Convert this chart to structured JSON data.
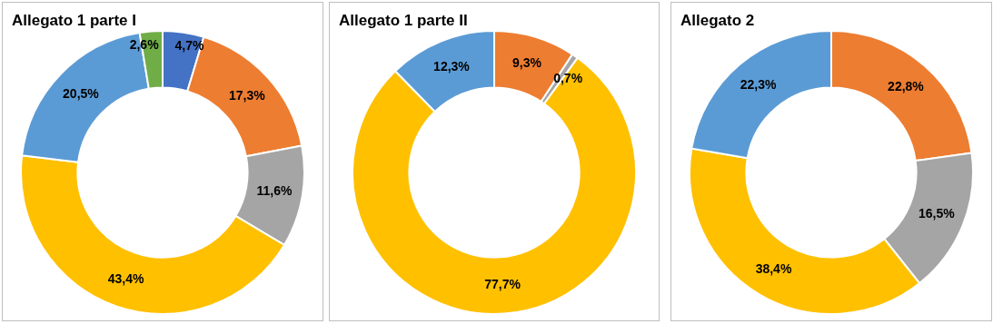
{
  "chart_data": [
    {
      "type": "donut",
      "title": "Allegato 1 parte I",
      "categories": [
        null,
        null,
        null,
        null,
        null,
        null
      ],
      "values": [
        4.7,
        17.3,
        11.6,
        43.4,
        20.5,
        2.6
      ],
      "colors": [
        "#4472c4",
        "#ed7d31",
        "#a5a5a5",
        "#ffc000",
        "#5b9bd5",
        "#70ad47"
      ],
      "value_labels": [
        "4,7%",
        "17,3%",
        "11,6%",
        "43,4%",
        "20,5%",
        "2,6%"
      ]
    },
    {
      "type": "donut",
      "title": "Allegato 1 parte II",
      "categories": [
        null,
        null,
        null,
        null
      ],
      "values": [
        9.3,
        0.7,
        77.7,
        12.3
      ],
      "colors": [
        "#ed7d31",
        "#a5a5a5",
        "#ffc000",
        "#5b9bd5"
      ],
      "value_labels": [
        "9,3%",
        "0,7%",
        "77,7%",
        "12,3%"
      ]
    },
    {
      "type": "donut",
      "title": "Allegato 2",
      "categories": [
        null,
        null,
        null,
        null
      ],
      "values": [
        22.8,
        16.5,
        38.4,
        22.3
      ],
      "colors": [
        "#ed7d31",
        "#a5a5a5",
        "#ffc000",
        "#5b9bd5"
      ],
      "value_labels": [
        "22,8%",
        "16,5%",
        "38,4%",
        "22,3%"
      ]
    }
  ]
}
